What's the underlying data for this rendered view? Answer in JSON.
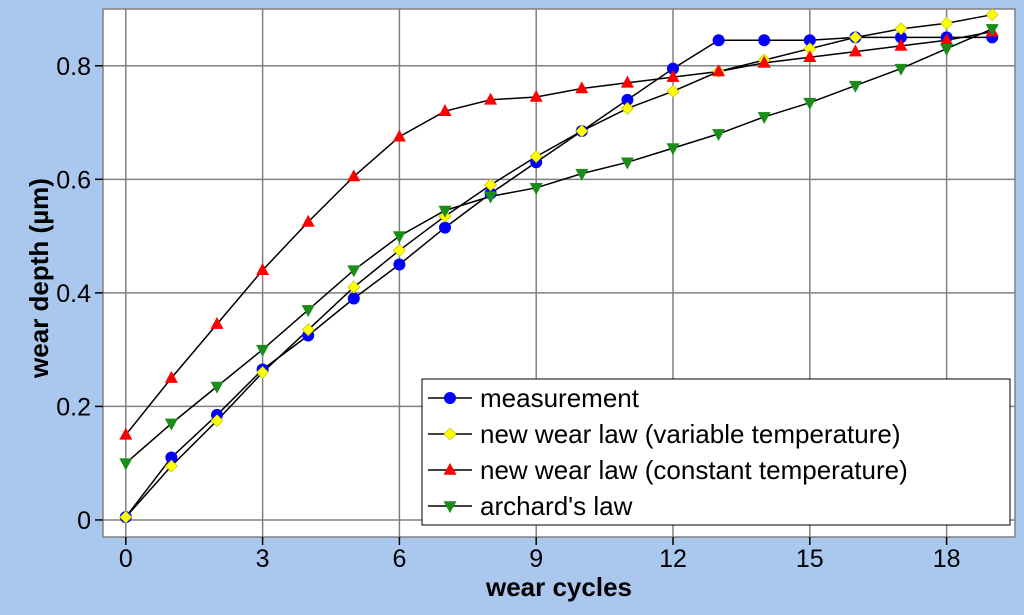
{
  "chart_data": {
    "type": "line",
    "title": "",
    "xlabel": "wear cycles",
    "ylabel": "wear depth (µm)",
    "xlim": [
      -0.5,
      19.5
    ],
    "ylim": [
      -0.03,
      0.9
    ],
    "xticks": [
      0,
      3,
      6,
      9,
      12,
      15,
      18
    ],
    "xtick_labels": [
      "0",
      "3",
      "6",
      "9",
      "12",
      "15",
      "18"
    ],
    "yticks": [
      0,
      0.2,
      0.4,
      0.6,
      0.8
    ],
    "ytick_labels": [
      "0",
      "0.2",
      "0.4",
      "0.6",
      "0.8"
    ],
    "grid": true,
    "legend_position": "bottom-right",
    "x": [
      0,
      1,
      2,
      3,
      4,
      5,
      6,
      7,
      8,
      9,
      10,
      11,
      12,
      13,
      14,
      15,
      16,
      17,
      18,
      19
    ],
    "series": [
      {
        "name": "measurement",
        "marker": "circle",
        "color": "#0000ff",
        "values": [
          0.005,
          0.11,
          0.185,
          0.265,
          0.325,
          0.39,
          0.45,
          0.515,
          0.575,
          0.63,
          0.685,
          0.74,
          0.795,
          0.845,
          0.845,
          0.845,
          0.85,
          0.85,
          0.85,
          0.85
        ]
      },
      {
        "name": "new wear law (variable temperature)",
        "marker": "diamond",
        "color": "#ffff00",
        "values": [
          0.005,
          0.095,
          0.175,
          0.26,
          0.335,
          0.41,
          0.475,
          0.535,
          0.59,
          0.64,
          0.685,
          0.725,
          0.755,
          0.79,
          0.81,
          0.83,
          0.85,
          0.865,
          0.875,
          0.89
        ]
      },
      {
        "name": "new wear law (constant temperature)",
        "marker": "triangle-up",
        "color": "#ff0000",
        "values": [
          0.15,
          0.25,
          0.345,
          0.44,
          0.525,
          0.605,
          0.675,
          0.72,
          0.74,
          0.745,
          0.76,
          0.77,
          0.78,
          0.79,
          0.805,
          0.815,
          0.825,
          0.835,
          0.845,
          0.86
        ]
      },
      {
        "name": "archard's law",
        "marker": "triangle-down",
        "color": "#1a8c1a",
        "values": [
          0.1,
          0.17,
          0.235,
          0.3,
          0.37,
          0.44,
          0.5,
          0.545,
          0.57,
          0.585,
          0.61,
          0.63,
          0.655,
          0.68,
          0.71,
          0.735,
          0.765,
          0.795,
          0.83,
          0.865
        ]
      }
    ]
  },
  "colors": {
    "frame_background": "#aac8ee",
    "plot_background": "#ffffff",
    "grid": "#808080",
    "line": "#000000"
  }
}
